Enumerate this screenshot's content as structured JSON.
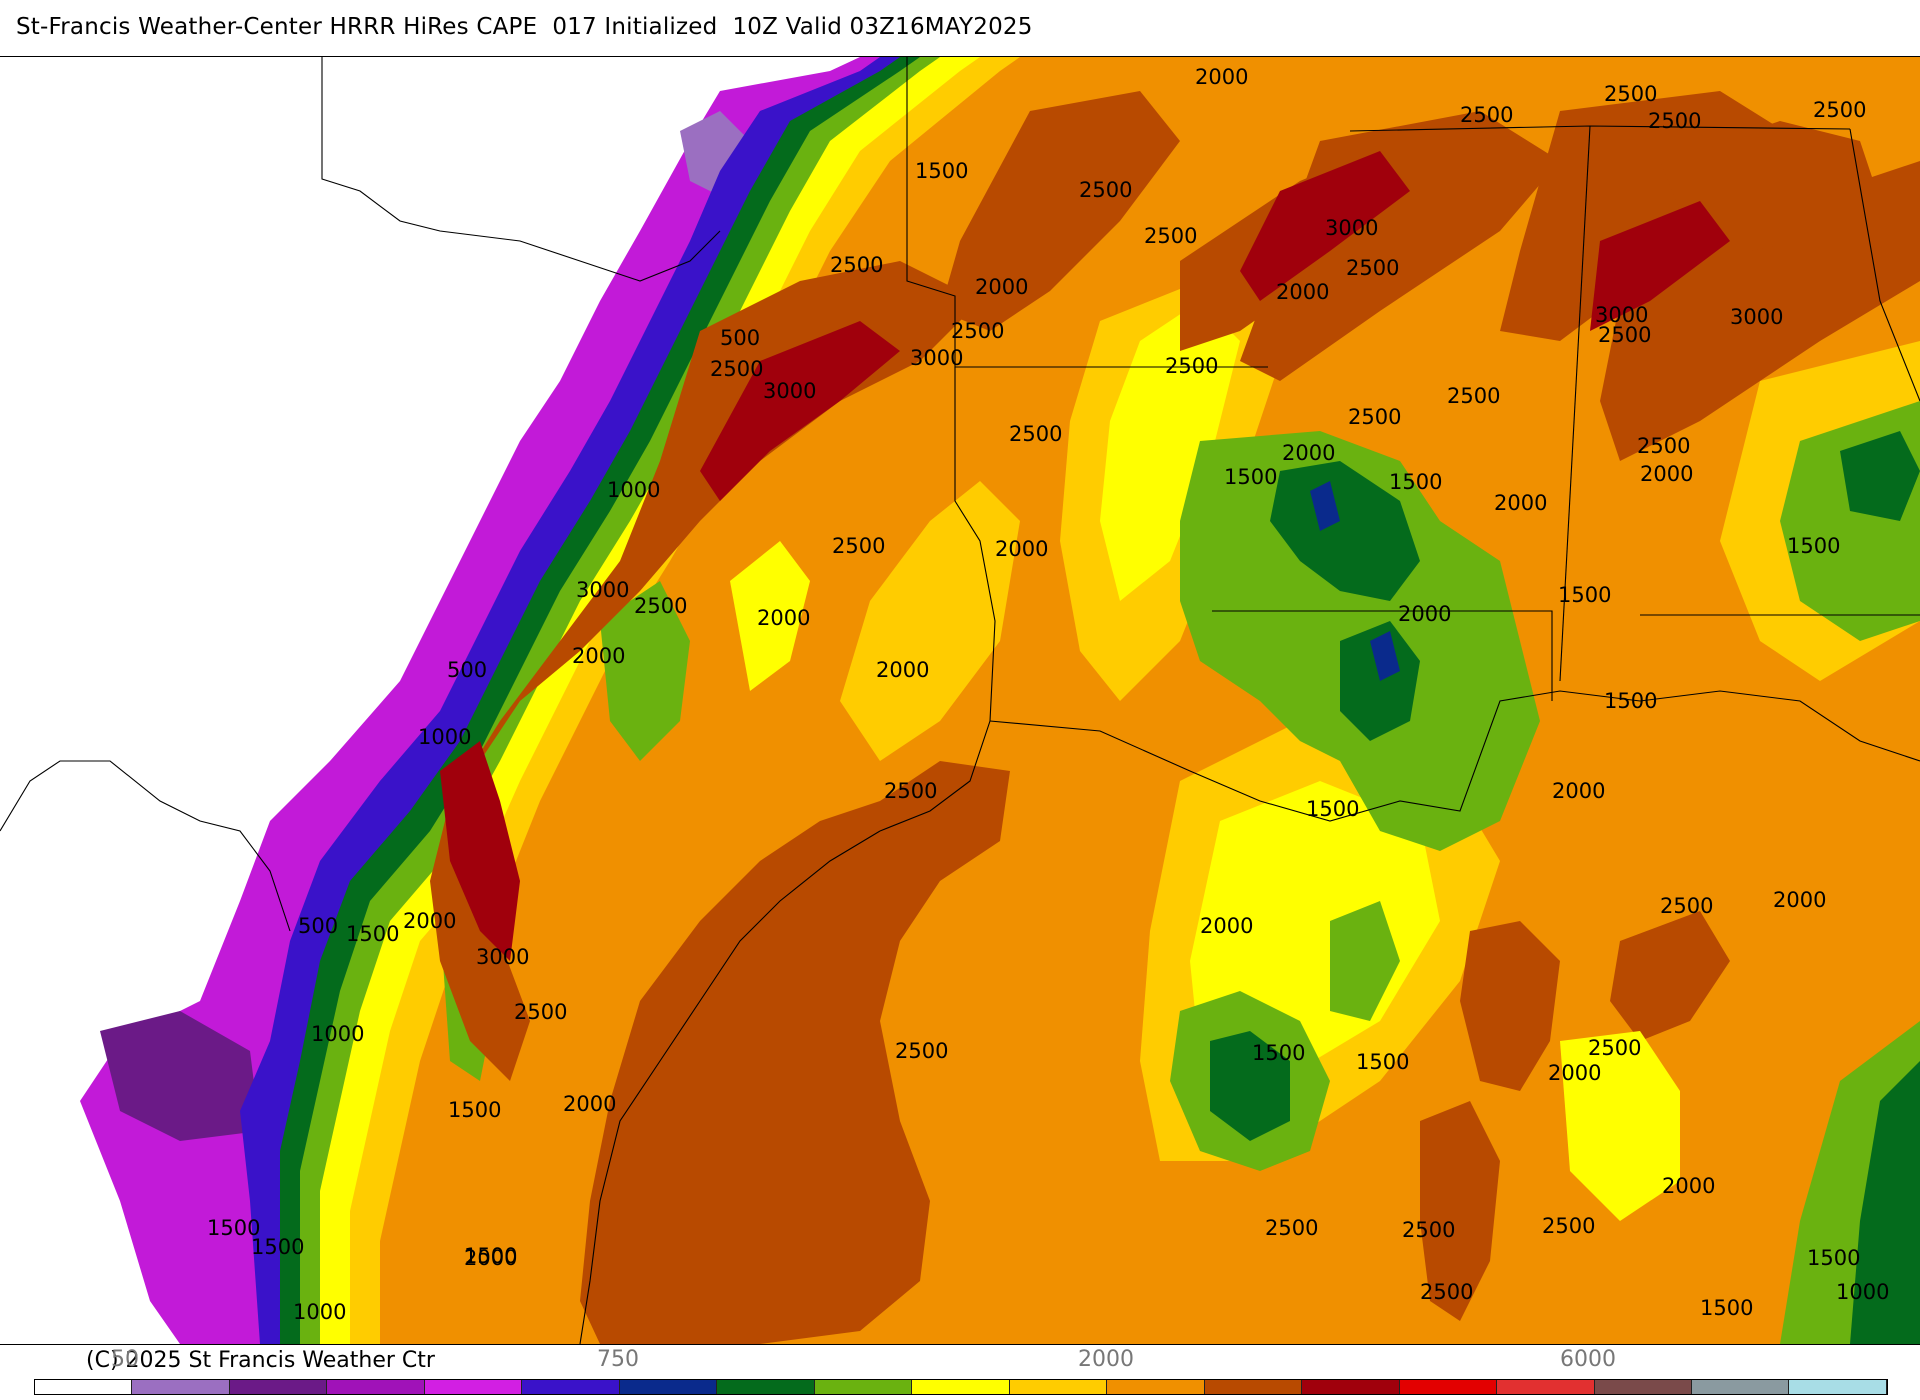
{
  "title": "St-Francis Weather-Center HRRR HiRes CAPE  017 Initialized  10Z Valid 03Z16MAY2025",
  "copyright": "(C) 2025 St Francis Weather Ctr",
  "legend": {
    "tick_labels": [
      "50",
      "750",
      "2000",
      "6000"
    ],
    "colors": [
      "#ffffff",
      "#9b6fc1",
      "#6b1a87",
      "#a012b8",
      "#d21fe3",
      "#3a12c9",
      "#0a2a8c",
      "#046b1c",
      "#6ab210",
      "#ffff00",
      "#ffcc00",
      "#f09000",
      "#b84a00",
      "#a0000c",
      "#e30000",
      "#e23030",
      "#7a4a4a",
      "#8a9aa0",
      "#a8dde6"
    ]
  },
  "contour_labels": [
    "2000",
    "2500",
    "2500",
    "2500",
    "2500",
    "1500",
    "2500",
    "2500",
    "2500",
    "2500",
    "3000",
    "2500",
    "2500",
    "2000",
    "2000",
    "500",
    "2500",
    "3000",
    "3000",
    "2500",
    "2500",
    "3000",
    "2500",
    "3000",
    "2500",
    "2500",
    "2000",
    "1500",
    "1500",
    "2000",
    "1000",
    "2000",
    "2500",
    "2000",
    "1500",
    "3000",
    "2500",
    "2000",
    "2000",
    "2000",
    "1500",
    "500",
    "2000",
    "1000",
    "1500",
    "2500",
    "2000",
    "1500",
    "500",
    "2500",
    "2000",
    "1500",
    "3000",
    "2000",
    "1000",
    "2500",
    "2500",
    "2000",
    "1500",
    "1500",
    "1500",
    "2000",
    "2000",
    "2000",
    "2500",
    "2500",
    "1500",
    "1000",
    "1500",
    "2000",
    "2500",
    "1500",
    "1000",
    "1500",
    "2500",
    "2500",
    "1500"
  ]
}
